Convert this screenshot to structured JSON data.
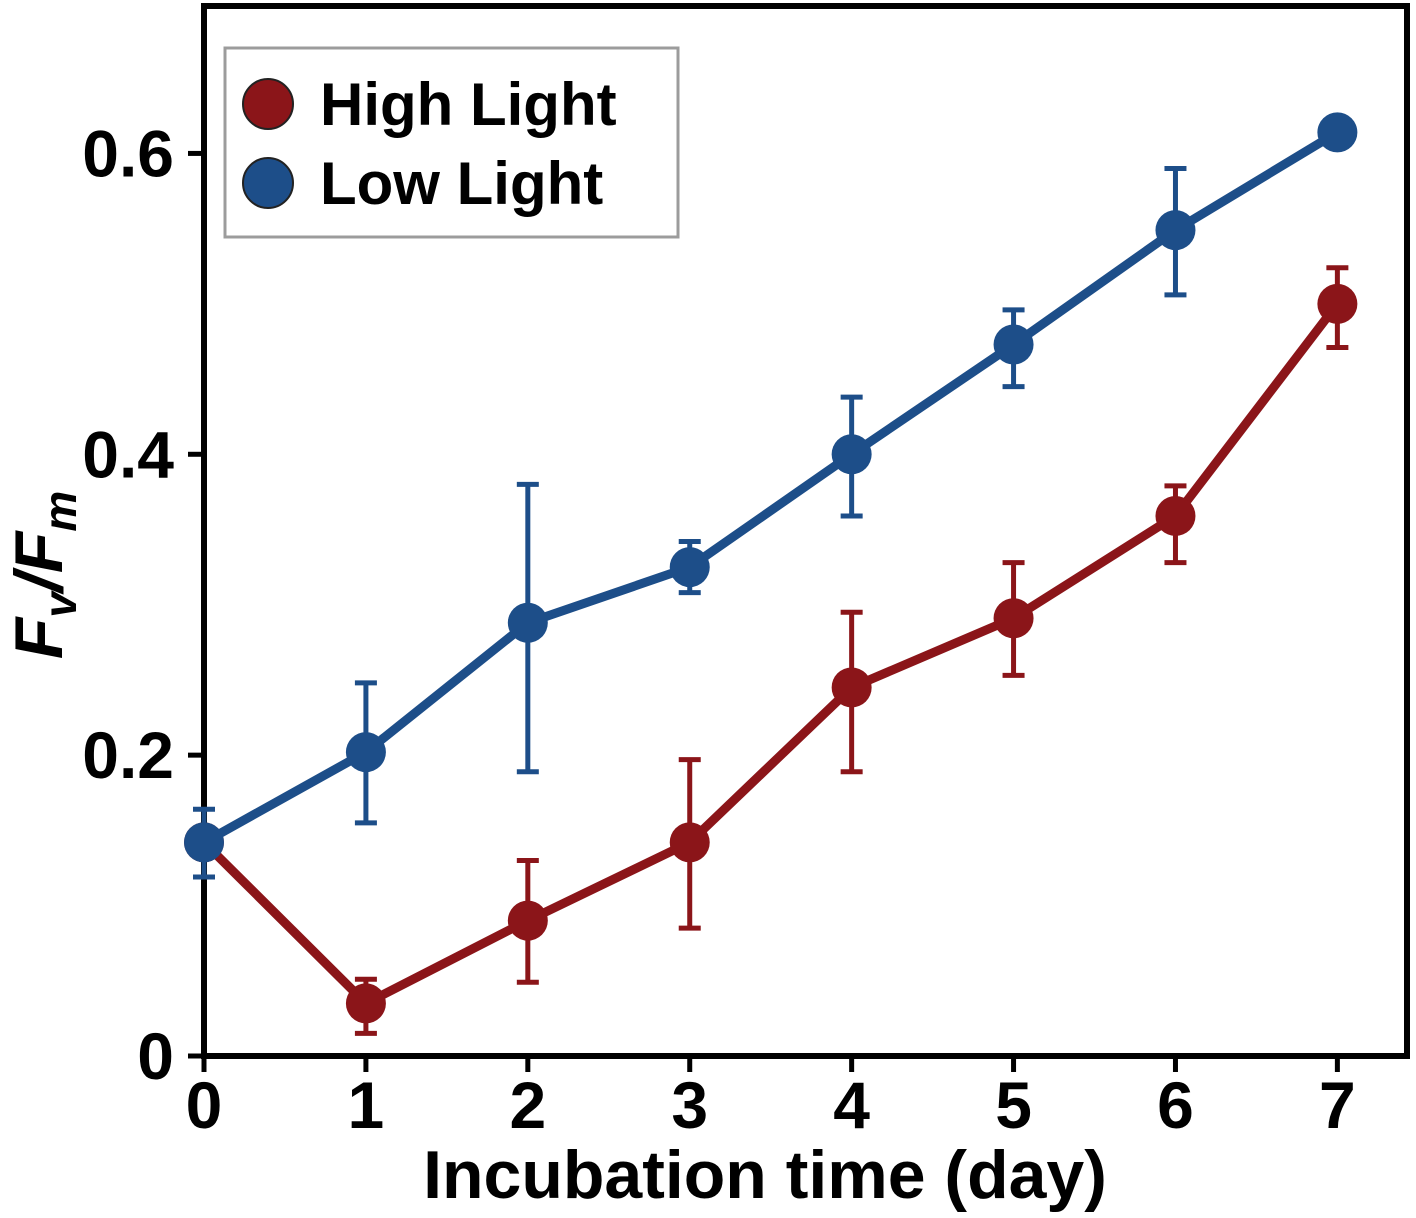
{
  "figure": {
    "background": "#ffffff"
  },
  "chart_data": {
    "type": "line",
    "title": "",
    "xlabel": "Incubation time (day)",
    "ylabel": "Fv/Fm",
    "ylabel_rich": [
      {
        "text": "F",
        "style": "main"
      },
      {
        "text": "v",
        "style": "sub"
      },
      {
        "text": "/",
        "style": "main"
      },
      {
        "text": "F",
        "style": "main"
      },
      {
        "text": "m",
        "style": "sub"
      }
    ],
    "x": [
      0,
      1,
      2,
      3,
      4,
      5,
      6,
      7
    ],
    "xticks": [
      0,
      1,
      2,
      3,
      4,
      5,
      6,
      7
    ],
    "yticks": [
      0,
      0.2,
      0.4,
      0.6
    ],
    "ytick_labels": [
      "0",
      "0.2",
      "0.4",
      "0.6"
    ],
    "xlim": [
      0,
      7.43
    ],
    "ylim": [
      0,
      0.698
    ],
    "grid": false,
    "legend_position": "top-left",
    "series": [
      {
        "name": "High Light",
        "color": "#8B1519",
        "values": [
          0.142,
          0.035,
          0.09,
          0.142,
          0.245,
          0.291,
          0.359,
          0.5
        ],
        "err_up": [
          0,
          0.016,
          0.04,
          0.055,
          0.05,
          0.037,
          0.02,
          0.024
        ],
        "err_down": [
          0,
          0.02,
          0.041,
          0.057,
          0.056,
          0.038,
          0.031,
          0.029
        ]
      },
      {
        "name": "Low Light",
        "color": "#1D4E89",
        "values": [
          0.142,
          0.202,
          0.288,
          0.325,
          0.4,
          0.473,
          0.549,
          0.614
        ],
        "err_up": [
          0.022,
          0.046,
          0.092,
          0.017,
          0.038,
          0.023,
          0.041,
          0
        ],
        "err_down": [
          0.023,
          0.047,
          0.099,
          0.017,
          0.041,
          0.028,
          0.043,
          0
        ]
      }
    ]
  }
}
